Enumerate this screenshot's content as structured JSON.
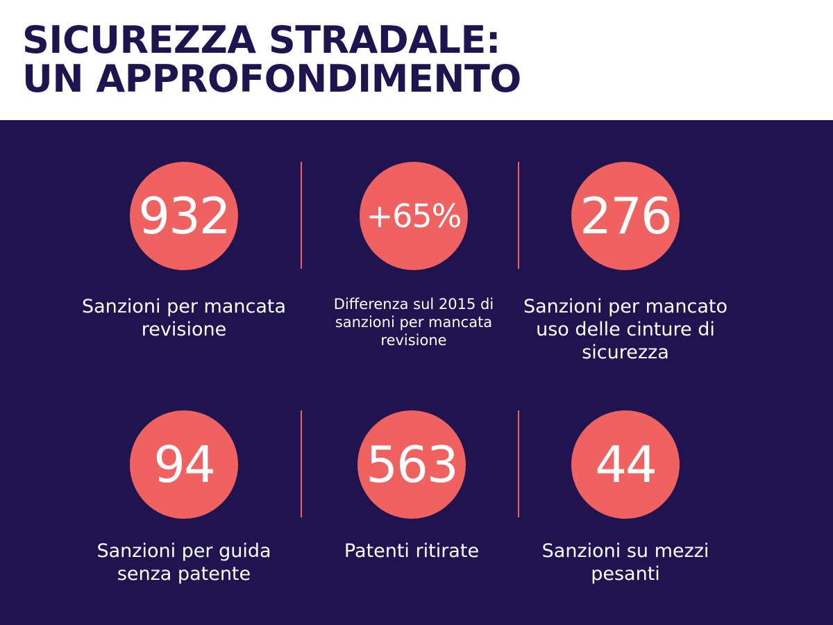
{
  "header": {
    "title_line1": "SICUREZZA STRADALE:",
    "title_line2": "UN APPROFONDIMENTO"
  },
  "colors": {
    "panel_background": "#201450",
    "circle": "#f0625f",
    "title": "#201450"
  },
  "stats": [
    {
      "value": "932",
      "label": "Sanzioni per mancata revisione"
    },
    {
      "value": "+65%",
      "label": "Differenza sul 2015 di sanzioni per mancata revisione"
    },
    {
      "value": "276",
      "label": "Sanzioni per mancato uso delle cinture di sicurezza"
    },
    {
      "value": "94",
      "label": "Sanzioni per guida senza patente"
    },
    {
      "value": "563",
      "label": "Patenti ritirate"
    },
    {
      "value": "44",
      "label": "Sanzioni su mezzi pesanti"
    }
  ]
}
